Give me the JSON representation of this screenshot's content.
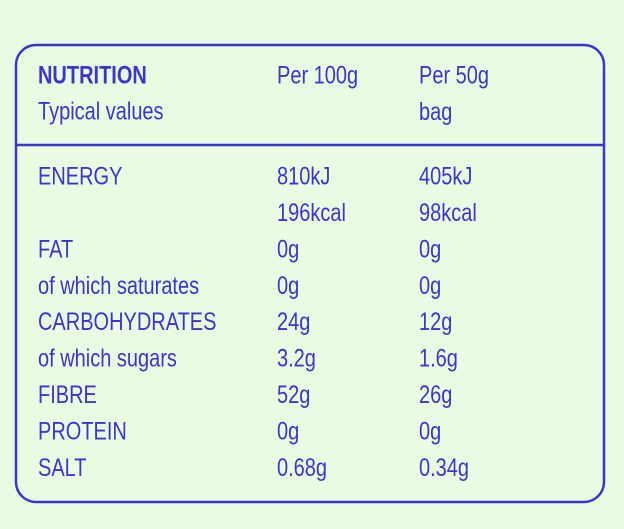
{
  "header": {
    "title": "NUTRITION",
    "subtitle": "Typical values",
    "columns": [
      [
        "Per 100g"
      ],
      [
        "Per 50g",
        "bag"
      ]
    ]
  },
  "table": {
    "rows": [
      {
        "label": "ENERGY",
        "per_100g": [
          "810kJ",
          "196kcal"
        ],
        "per_50g": [
          "405kJ",
          "98kcal"
        ]
      },
      {
        "label": "FAT",
        "per_100g": [
          "0g"
        ],
        "per_50g": [
          "0g"
        ]
      },
      {
        "label": "of which saturates",
        "per_100g": [
          "0g"
        ],
        "per_50g": [
          "0g"
        ]
      },
      {
        "label": "CARBOHYDRATES",
        "per_100g": [
          "24g"
        ],
        "per_50g": [
          "12g"
        ]
      },
      {
        "label": "of which sugars",
        "per_100g": [
          "3.2g"
        ],
        "per_50g": [
          "1.6g"
        ]
      },
      {
        "label": "FIBRE",
        "per_100g": [
          "52g"
        ],
        "per_50g": [
          "26g"
        ]
      },
      {
        "label": "PROTEIN",
        "per_100g": [
          "0g"
        ],
        "per_50g": [
          "0g"
        ]
      },
      {
        "label": "SALT",
        "per_100g": [
          "0.68g"
        ],
        "per_50g": [
          "0.34g"
        ]
      }
    ]
  }
}
